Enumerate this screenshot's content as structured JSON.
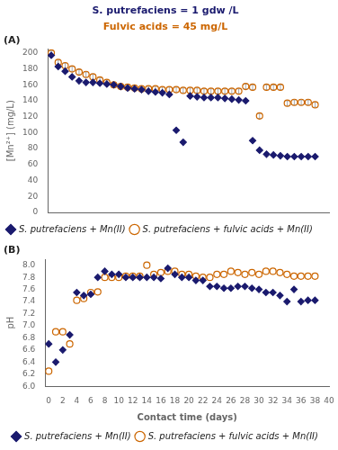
{
  "chart_data": [
    {
      "type": "scatter",
      "title": "S. putrefaciens = 1 gdw /L",
      "subtitle": "Fulvic acids = 45 mg/L",
      "annotations": [
        "(A)"
      ],
      "ylabel": "[Mn²⁺] (mg/L)",
      "x": [
        0,
        1,
        2,
        3,
        4,
        5,
        6,
        7,
        8,
        9,
        10,
        11,
        12,
        13,
        14,
        15,
        16,
        17,
        18,
        19,
        20,
        21,
        22,
        23,
        24,
        25,
        26,
        27,
        28,
        29,
        30,
        31,
        32,
        33,
        34,
        35,
        36,
        37,
        38
      ],
      "series": [
        {
          "name": "S. putrefaciens + Mn(II)",
          "color": "#1a1a6e",
          "marker": "diamond",
          "values": [
            197,
            183,
            177,
            170,
            165,
            163,
            163,
            162,
            161,
            160,
            158,
            156,
            155,
            154,
            152,
            151,
            150,
            148,
            103,
            88,
            146,
            145,
            144,
            144,
            144,
            143,
            142,
            141,
            140,
            90,
            78,
            73,
            72,
            71,
            70,
            70,
            70,
            70,
            70
          ]
        },
        {
          "name": "S. putrefaciens + fulvic acids + Mn(II)",
          "color": "#cc6600",
          "marker": "open_circle",
          "values": [
            200,
            188,
            184,
            180,
            176,
            173,
            170,
            166,
            163,
            160,
            158,
            157,
            156,
            155,
            155,
            155,
            154,
            154,
            154,
            153,
            153,
            153,
            152,
            152,
            152,
            152,
            152,
            152,
            158,
            157,
            121,
            157,
            157,
            157,
            137,
            138,
            138,
            138,
            135
          ],
          "yerr": [
            3,
            3,
            3,
            3,
            3,
            3,
            3,
            3,
            3,
            3,
            3,
            3,
            3,
            3,
            3,
            3,
            3,
            3,
            3,
            3,
            3,
            3,
            3,
            3,
            3,
            3,
            3,
            3,
            3,
            3,
            3,
            3,
            3,
            3,
            3,
            3,
            3,
            3,
            3
          ]
        }
      ],
      "xlim": [
        -0.5,
        40
      ],
      "xticks": [
        0,
        2,
        4,
        6,
        8,
        10,
        12,
        14,
        16,
        18,
        20,
        22,
        24,
        26,
        28,
        30,
        32,
        34,
        36,
        38,
        40
      ],
      "ylim": [
        0,
        205
      ],
      "yticks": [
        0,
        20,
        40,
        60,
        80,
        100,
        120,
        140,
        160,
        180,
        200
      ],
      "tick_labels": "y",
      "grid": false,
      "legend": "lower left"
    },
    {
      "type": "scatter",
      "annotations": [
        "(B)"
      ],
      "xlabel": "Contact time (days)",
      "ylabel": "pH",
      "x": [
        0,
        1,
        2,
        3,
        4,
        5,
        6,
        7,
        8,
        9,
        10,
        11,
        12,
        13,
        14,
        15,
        16,
        17,
        18,
        19,
        20,
        21,
        22,
        23,
        24,
        25,
        26,
        27,
        28,
        29,
        30,
        31,
        32,
        33,
        34,
        35,
        36,
        37,
        38
      ],
      "series": [
        {
          "name": "S. putrefaciens + Mn(II)",
          "color": "#1a1a6e",
          "marker": "diamond",
          "values": [
            6.7,
            6.4,
            6.6,
            6.85,
            7.55,
            7.5,
            7.52,
            7.8,
            7.9,
            7.85,
            7.85,
            7.8,
            7.8,
            7.8,
            7.8,
            7.8,
            7.78,
            7.95,
            7.85,
            7.8,
            7.8,
            7.75,
            7.75,
            7.65,
            7.65,
            7.62,
            7.62,
            7.65,
            7.65,
            7.62,
            7.6,
            7.55,
            7.55,
            7.5,
            7.4,
            7.6,
            7.4,
            7.42,
            7.42
          ]
        },
        {
          "name": "S. putrefaciens + fulvic acids + Mn(II)",
          "color": "#cc6600",
          "marker": "open_circle",
          "values": [
            6.25,
            6.9,
            6.9,
            6.7,
            7.42,
            7.45,
            7.55,
            7.56,
            7.8,
            7.8,
            7.8,
            7.82,
            7.82,
            7.82,
            8.0,
            7.85,
            7.88,
            7.9,
            7.9,
            7.85,
            7.85,
            7.82,
            7.8,
            7.8,
            7.85,
            7.85,
            7.9,
            7.88,
            7.85,
            7.88,
            7.85,
            7.9,
            7.9,
            7.88,
            7.85,
            7.82,
            7.82,
            7.82,
            7.82
          ]
        }
      ],
      "xlim": [
        -0.5,
        40
      ],
      "xticks": [
        0,
        2,
        4,
        6,
        8,
        10,
        12,
        14,
        16,
        18,
        20,
        22,
        24,
        26,
        28,
        30,
        32,
        34,
        36,
        38,
        40
      ],
      "ylim": [
        6.0,
        8.1
      ],
      "yticks": [
        {
          "value": 6.0,
          "label": "6.0"
        },
        6.2,
        6.4,
        6.6,
        6.8,
        {
          "value": 7.0,
          "label": "7.0"
        },
        7.2,
        7.4,
        7.6,
        7.8,
        {
          "value": 8.0,
          "label": "8.0"
        }
      ],
      "grid": false,
      "legend": "lower center"
    }
  ]
}
